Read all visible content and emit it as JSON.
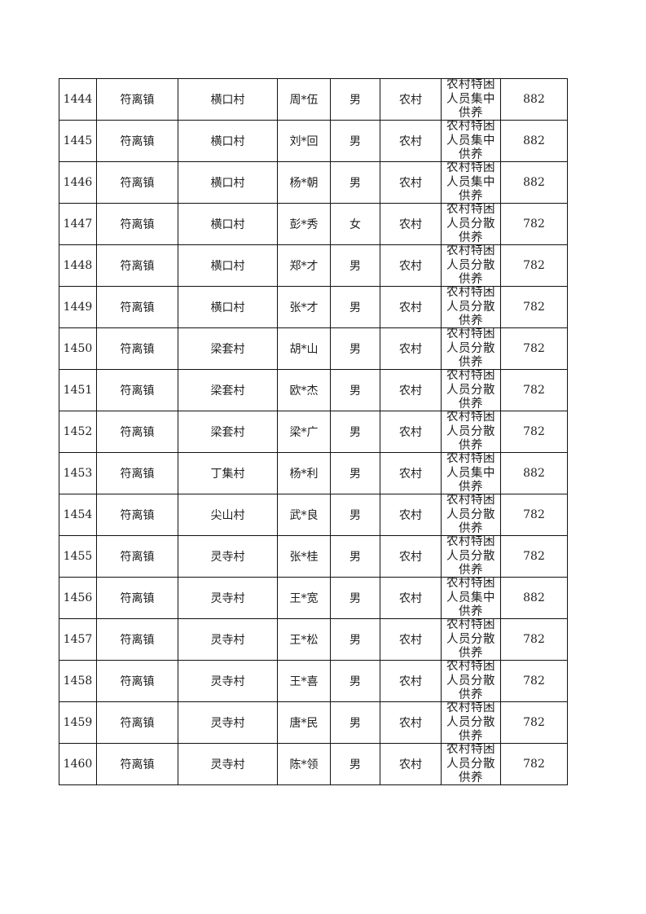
{
  "rows": [
    {
      "no": "1444",
      "town": "符离镇",
      "village": "横口村",
      "name": "周*伍",
      "gender": "男",
      "area": "农村",
      "type": "农村特困人员集中供养",
      "amount": "882"
    },
    {
      "no": "1445",
      "town": "符离镇",
      "village": "横口村",
      "name": "刘*回",
      "gender": "男",
      "area": "农村",
      "type": "农村特困人员集中供养",
      "amount": "882"
    },
    {
      "no": "1446",
      "town": "符离镇",
      "village": "横口村",
      "name": "杨*朝",
      "gender": "男",
      "area": "农村",
      "type": "农村特困人员集中供养",
      "amount": "882"
    },
    {
      "no": "1447",
      "town": "符离镇",
      "village": "横口村",
      "name": "彭*秀",
      "gender": "女",
      "area": "农村",
      "type": "农村特困人员分散供养",
      "amount": "782"
    },
    {
      "no": "1448",
      "town": "符离镇",
      "village": "横口村",
      "name": "郑*才",
      "gender": "男",
      "area": "农村",
      "type": "农村特困人员分散供养",
      "amount": "782"
    },
    {
      "no": "1449",
      "town": "符离镇",
      "village": "横口村",
      "name": "张*才",
      "gender": "男",
      "area": "农村",
      "type": "农村特困人员分散供养",
      "amount": "782"
    },
    {
      "no": "1450",
      "town": "符离镇",
      "village": "梁套村",
      "name": "胡*山",
      "gender": "男",
      "area": "农村",
      "type": "农村特困人员分散供养",
      "amount": "782"
    },
    {
      "no": "1451",
      "town": "符离镇",
      "village": "梁套村",
      "name": "欧*杰",
      "gender": "男",
      "area": "农村",
      "type": "农村特困人员分散供养",
      "amount": "782"
    },
    {
      "no": "1452",
      "town": "符离镇",
      "village": "梁套村",
      "name": "梁*广",
      "gender": "男",
      "area": "农村",
      "type": "农村特困人员分散供养",
      "amount": "782"
    },
    {
      "no": "1453",
      "town": "符离镇",
      "village": "丁集村",
      "name": "杨*利",
      "gender": "男",
      "area": "农村",
      "type": "农村特困人员集中供养",
      "amount": "882"
    },
    {
      "no": "1454",
      "town": "符离镇",
      "village": "尖山村",
      "name": "武*良",
      "gender": "男",
      "area": "农村",
      "type": "农村特困人员分散供养",
      "amount": "782"
    },
    {
      "no": "1455",
      "town": "符离镇",
      "village": "灵寺村",
      "name": "张*桂",
      "gender": "男",
      "area": "农村",
      "type": "农村特困人员分散供养",
      "amount": "782"
    },
    {
      "no": "1456",
      "town": "符离镇",
      "village": "灵寺村",
      "name": "王*宽",
      "gender": "男",
      "area": "农村",
      "type": "农村特困人员集中供养",
      "amount": "882"
    },
    {
      "no": "1457",
      "town": "符离镇",
      "village": "灵寺村",
      "name": "王*松",
      "gender": "男",
      "area": "农村",
      "type": "农村特困人员分散供养",
      "amount": "782"
    },
    {
      "no": "1458",
      "town": "符离镇",
      "village": "灵寺村",
      "name": "王*喜",
      "gender": "男",
      "area": "农村",
      "type": "农村特困人员分散供养",
      "amount": "782"
    },
    {
      "no": "1459",
      "town": "符离镇",
      "village": "灵寺村",
      "name": "唐*民",
      "gender": "男",
      "area": "农村",
      "type": "农村特困人员分散供养",
      "amount": "782"
    },
    {
      "no": "1460",
      "town": "符离镇",
      "village": "灵寺村",
      "name": "陈*领",
      "gender": "男",
      "area": "农村",
      "type": "农村特困人员分散供养",
      "amount": "782"
    }
  ]
}
